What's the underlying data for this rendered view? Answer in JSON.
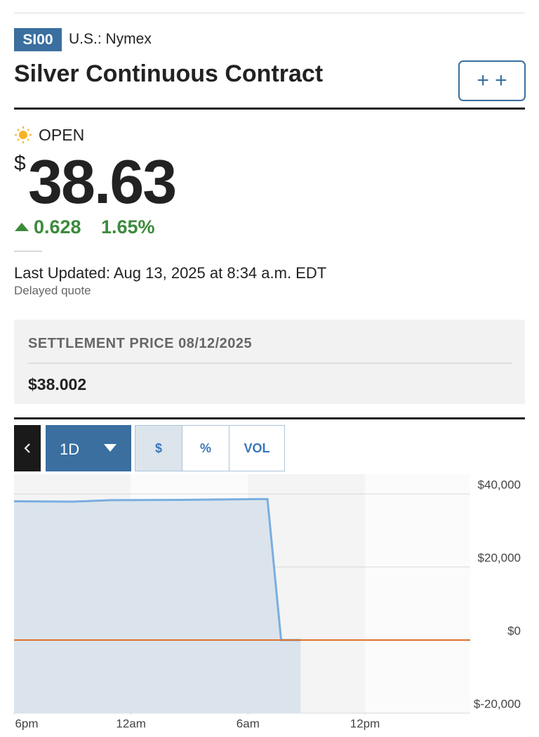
{
  "header": {
    "symbol": "SI00",
    "exchange": "U.S.: Nymex",
    "title": "Silver Continuous Contract",
    "watch_button": "+ +"
  },
  "quote": {
    "status": "OPEN",
    "currency": "$",
    "price": "38.63",
    "change": "0.628",
    "change_percent": "1.65%",
    "last_updated": "Last Updated: Aug 13, 2025 at 8:34 a.m. EDT",
    "delayed": "Delayed quote"
  },
  "settlement": {
    "label": "SETTLEMENT PRICE 08/12/2025",
    "value": "$38.002"
  },
  "controls": {
    "range": "1D",
    "modes": [
      "$",
      "%",
      "VOL"
    ]
  },
  "chart_data": {
    "type": "area",
    "x": [
      0,
      3,
      5,
      9,
      12.5,
      13.0,
      13.7,
      14.7
    ],
    "series": [
      {
        "name": "SI00",
        "color": "#7aaee0",
        "fill": "#dbe4ec",
        "values": [
          38000,
          37900,
          38300,
          38400,
          38600,
          38600,
          0,
          0
        ]
      }
    ],
    "reference_line": {
      "value": 0,
      "color": "#e0702e"
    },
    "xlim": [
      0,
      23.4
    ],
    "xticks": [
      {
        "value": 0,
        "label": "6pm"
      },
      {
        "value": 6,
        "label": "12am"
      },
      {
        "value": 12,
        "label": "6am"
      },
      {
        "value": 18,
        "label": "12pm"
      }
    ],
    "ylim": [
      -20000,
      45400
    ],
    "yticks": [
      {
        "value": 40000,
        "label": "$40,000"
      },
      {
        "value": 20000,
        "label": "$20,000"
      },
      {
        "value": 0,
        "label": "$0"
      },
      {
        "value": -20000,
        "label": "$-20,000"
      }
    ],
    "grid": true
  }
}
